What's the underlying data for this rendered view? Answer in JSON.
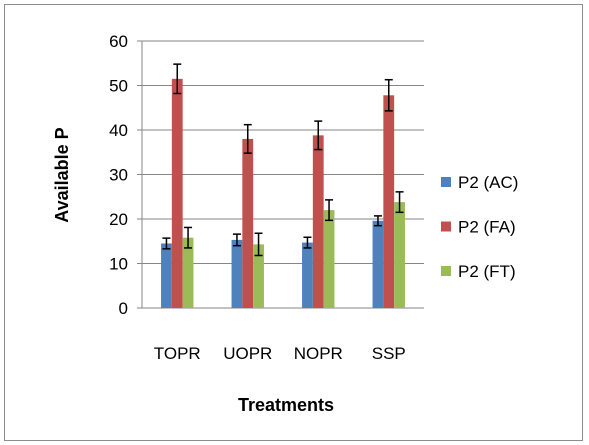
{
  "chart_data": {
    "type": "bar",
    "title": "",
    "xlabel": "Treatments",
    "ylabel": "Available P",
    "categories": [
      "TOPR",
      "UOPR",
      "NOPR",
      "SSP"
    ],
    "ylim": [
      0,
      60
    ],
    "yticks": [
      0,
      10,
      20,
      30,
      40,
      50,
      60
    ],
    "grid": true,
    "legend_position": "right",
    "series": [
      {
        "name": "P2 (AC)",
        "color": "#4f81bd",
        "values": [
          14.5,
          15.3,
          14.7,
          19.6
        ],
        "errors": [
          1.2,
          1.3,
          1.2,
          1.1
        ]
      },
      {
        "name": "P2 (FA)",
        "color": "#c0504d",
        "values": [
          51.5,
          38.0,
          38.8,
          47.8
        ],
        "errors": [
          3.3,
          3.2,
          3.2,
          3.5
        ]
      },
      {
        "name": "P2 (FT)",
        "color": "#9bbb59",
        "values": [
          15.8,
          14.3,
          22.0,
          23.8
        ],
        "errors": [
          2.3,
          2.5,
          2.3,
          2.3
        ]
      }
    ]
  }
}
